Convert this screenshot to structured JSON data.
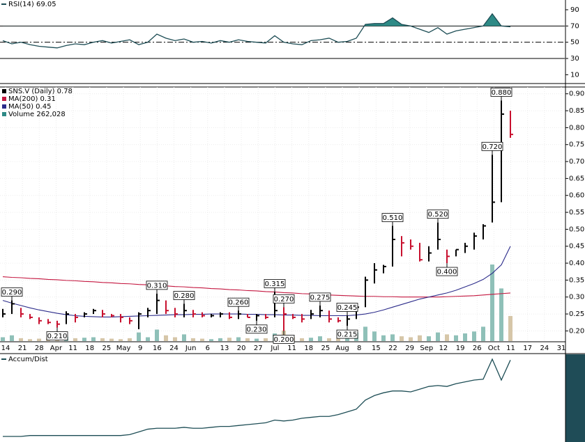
{
  "chart_data": [
    {
      "type": "line",
      "legend": "RSI(14) 69.05",
      "color": "#1d4d55",
      "fill": "#2e8a86",
      "values": [
        52,
        48,
        50,
        47,
        45,
        44,
        43,
        46,
        48,
        47,
        50,
        52,
        49,
        51,
        53,
        47,
        50,
        60,
        55,
        52,
        54,
        50,
        51,
        49,
        52,
        50,
        53,
        51,
        50,
        49,
        58,
        50,
        48,
        47,
        52,
        53,
        55,
        50,
        51,
        55,
        72,
        73,
        73,
        80,
        72,
        70,
        66,
        62,
        68,
        60,
        64,
        66,
        68,
        70,
        85,
        70,
        69.05
      ],
      "ylim": [
        0,
        102
      ],
      "yticks": [
        10,
        30,
        50,
        70,
        90
      ],
      "reference_lines": [
        70,
        50,
        30
      ]
    },
    {
      "type": "ohlc",
      "legend": "SNS.V (Daily) 0.78",
      "up_color": "#000000",
      "down_color": "#c8102e",
      "high": [
        0.265,
        0.29,
        0.268,
        0.25,
        0.24,
        0.235,
        0.23,
        0.258,
        0.25,
        0.255,
        0.265,
        0.262,
        0.25,
        0.25,
        0.24,
        0.255,
        0.268,
        0.31,
        0.29,
        0.268,
        0.28,
        0.262,
        0.255,
        0.25,
        0.255,
        0.255,
        0.26,
        0.25,
        0.25,
        0.25,
        0.315,
        0.27,
        0.25,
        0.25,
        0.262,
        0.275,
        0.26,
        0.24,
        0.245,
        0.28,
        0.36,
        0.4,
        0.395,
        0.51,
        0.48,
        0.47,
        0.46,
        0.45,
        0.52,
        0.44,
        0.44,
        0.46,
        0.49,
        0.515,
        0.72,
        0.88,
        0.85
      ],
      "low": [
        0.24,
        0.25,
        0.24,
        0.235,
        0.22,
        0.22,
        0.21,
        0.22,
        0.225,
        0.24,
        0.25,
        0.24,
        0.24,
        0.225,
        0.22,
        0.205,
        0.24,
        0.25,
        0.25,
        0.24,
        0.24,
        0.24,
        0.24,
        0.24,
        0.24,
        0.235,
        0.235,
        0.24,
        0.23,
        0.235,
        0.24,
        0.2,
        0.235,
        0.225,
        0.235,
        0.24,
        0.225,
        0.225,
        0.215,
        0.235,
        0.27,
        0.34,
        0.37,
        0.39,
        0.42,
        0.44,
        0.405,
        0.405,
        0.44,
        0.4,
        0.42,
        0.43,
        0.44,
        0.47,
        0.52,
        0.58,
        0.77
      ],
      "close": [
        0.25,
        0.28,
        0.25,
        0.24,
        0.23,
        0.225,
        0.22,
        0.25,
        0.24,
        0.25,
        0.26,
        0.25,
        0.245,
        0.24,
        0.23,
        0.25,
        0.26,
        0.29,
        0.26,
        0.25,
        0.26,
        0.25,
        0.245,
        0.245,
        0.25,
        0.24,
        0.25,
        0.24,
        0.245,
        0.24,
        0.26,
        0.25,
        0.24,
        0.235,
        0.25,
        0.26,
        0.235,
        0.23,
        0.235,
        0.27,
        0.35,
        0.38,
        0.39,
        0.47,
        0.46,
        0.45,
        0.41,
        0.43,
        0.47,
        0.42,
        0.44,
        0.45,
        0.48,
        0.51,
        0.58,
        0.84,
        0.78
      ],
      "series": [
        {
          "name": "MA(200) 0.31",
          "color": "#c4163f",
          "values": [
            0.36,
            0.358,
            0.357,
            0.355,
            0.354,
            0.352,
            0.351,
            0.349,
            0.348,
            0.346,
            0.345,
            0.343,
            0.342,
            0.34,
            0.339,
            0.337,
            0.336,
            0.334,
            0.333,
            0.331,
            0.33,
            0.328,
            0.327,
            0.325,
            0.324,
            0.322,
            0.321,
            0.319,
            0.318,
            0.316,
            0.315,
            0.313,
            0.312,
            0.31,
            0.309,
            0.307,
            0.306,
            0.305,
            0.304,
            0.303,
            0.302,
            0.302,
            0.301,
            0.301,
            0.3,
            0.3,
            0.3,
            0.3,
            0.3,
            0.301,
            0.302,
            0.303,
            0.304,
            0.306,
            0.308,
            0.31,
            0.312
          ]
        },
        {
          "name": "MA(50) 0.45",
          "color": "#2b2b8a",
          "values": [
            0.29,
            0.282,
            0.275,
            0.268,
            0.262,
            0.257,
            0.252,
            0.248,
            0.245,
            0.243,
            0.242,
            0.241,
            0.241,
            0.242,
            0.243,
            0.244,
            0.245,
            0.246,
            0.247,
            0.248,
            0.248,
            0.249,
            0.249,
            0.25,
            0.25,
            0.25,
            0.25,
            0.249,
            0.249,
            0.248,
            0.248,
            0.247,
            0.247,
            0.246,
            0.246,
            0.245,
            0.245,
            0.245,
            0.245,
            0.247,
            0.25,
            0.255,
            0.262,
            0.27,
            0.278,
            0.286,
            0.294,
            0.3,
            0.306,
            0.312,
            0.32,
            0.33,
            0.34,
            0.352,
            0.37,
            0.395,
            0.45
          ]
        }
      ],
      "volume": {
        "name": "Volume 262,028",
        "up_color": "#8fc0b8",
        "down_color": "#d6c6a8",
        "values": [
          40000,
          60000,
          30000,
          20000,
          25000,
          30000,
          50000,
          45000,
          30000,
          35000,
          40000,
          30000,
          25000,
          20000,
          30000,
          90000,
          40000,
          120000,
          60000,
          40000,
          70000,
          30000,
          25000,
          20000,
          30000,
          35000,
          40000,
          30000,
          25000,
          30000,
          80000,
          110000,
          40000,
          30000,
          35000,
          50000,
          30000,
          25000,
          60000,
          90000,
          150000,
          100000,
          60000,
          70000,
          50000,
          40000,
          60000,
          50000,
          90000,
          70000,
          60000,
          80000,
          100000,
          150000,
          800000,
          550000,
          262028
        ]
      },
      "high_labels": [
        {
          "value": 0.29,
          "label": "0.290"
        },
        {
          "value": 0.31,
          "label": "0.310"
        },
        {
          "value": 0.28,
          "label": "0.280"
        },
        {
          "value": 0.26,
          "label": "0.260"
        },
        {
          "value": 0.315,
          "label": "0.315"
        },
        {
          "value": 0.27,
          "label": "0.270"
        },
        {
          "value": 0.275,
          "label": "0.275"
        },
        {
          "value": 0.245,
          "label": "0.245"
        },
        {
          "value": 0.51,
          "label": "0.510"
        },
        {
          "value": 0.52,
          "label": "0.520"
        },
        {
          "value": 0.72,
          "label": "0.720"
        },
        {
          "value": 0.88,
          "label": "0.880"
        }
      ],
      "low_labels": [
        {
          "value": 0.21,
          "label": "0.210"
        },
        {
          "value": 0.23,
          "label": "0.230"
        },
        {
          "value": 0.2,
          "label": "0.200"
        },
        {
          "value": 0.215,
          "label": "0.215"
        },
        {
          "value": 0.4,
          "label": "0.400"
        }
      ],
      "ylim": [
        0.17,
        0.92
      ],
      "yticks": [
        {
          "value": 0.2,
          "label": "0.20"
        },
        {
          "value": 0.25,
          "label": "0.25"
        },
        {
          "value": 0.3,
          "label": "0.30"
        },
        {
          "value": 0.35,
          "label": "0.35"
        },
        {
          "value": 0.4,
          "label": "0.40"
        },
        {
          "value": 0.45,
          "label": "0.45"
        },
        {
          "value": 0.5,
          "label": "0.50"
        },
        {
          "value": 0.55,
          "label": "0.55"
        },
        {
          "value": 0.6,
          "label": "0.60"
        },
        {
          "value": 0.65,
          "label": "0.65"
        },
        {
          "value": 0.7,
          "label": "0.70"
        },
        {
          "value": 0.75,
          "label": "0.75"
        },
        {
          "value": 0.8,
          "label": "0.80"
        },
        {
          "value": 0.85,
          "label": "0.85"
        },
        {
          "value": 0.9,
          "label": "0.90"
        }
      ],
      "grid": true,
      "xaxis_labels": [
        "14",
        "21",
        "28",
        "Apr",
        "11",
        "18",
        "25",
        "May",
        "9",
        "16",
        "24",
        "Jun",
        "6",
        "13",
        "20",
        "27",
        "Jul",
        "11",
        "18",
        "25",
        "Aug",
        "8",
        "15",
        "22",
        "29",
        "Sep",
        "12",
        "19",
        "26",
        "Oct",
        "11",
        "17",
        "24",
        "31"
      ]
    },
    {
      "type": "line",
      "legend": "Accum/Dist",
      "color": "#1d4d55",
      "values": [
        0,
        0,
        0,
        1,
        1,
        1,
        1,
        1,
        1,
        1,
        1,
        1,
        1,
        1,
        2,
        5,
        8,
        9,
        9,
        9,
        10,
        9,
        9,
        10,
        11,
        11,
        12,
        13,
        14,
        15,
        18,
        17,
        18,
        20,
        21,
        22,
        22,
        24,
        27,
        30,
        40,
        45,
        48,
        50,
        50,
        49,
        52,
        55,
        56,
        55,
        58,
        60,
        62,
        63,
        85,
        62,
        84
      ]
    }
  ]
}
